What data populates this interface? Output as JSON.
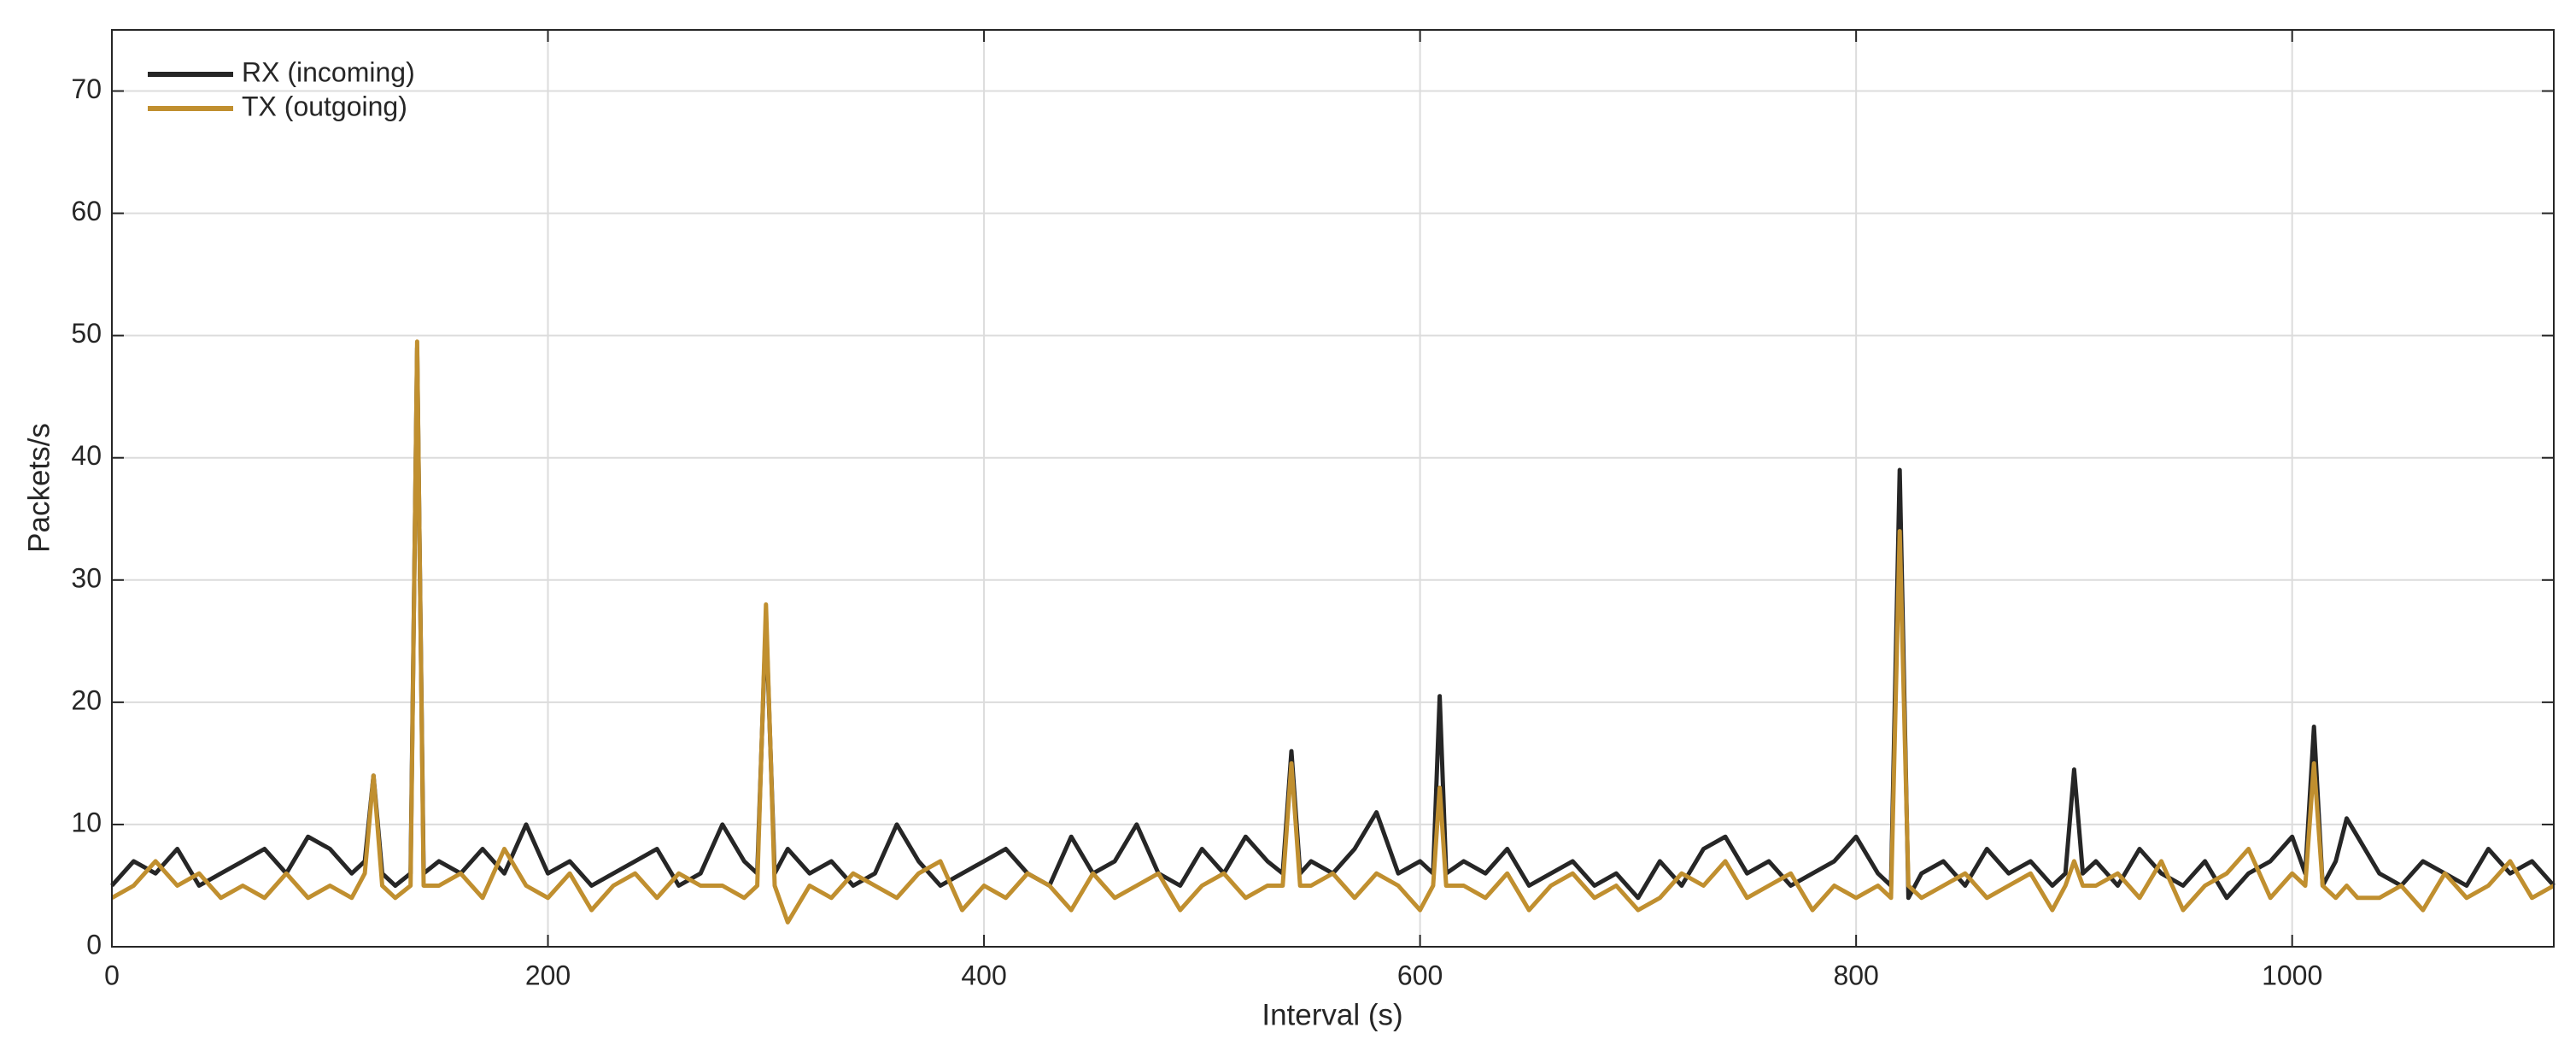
{
  "chart_data": {
    "type": "line",
    "x_label": "Interval (s)",
    "y_label": "Packets/s",
    "x": [
      0,
      10,
      20,
      30,
      40,
      50,
      60,
      70,
      80,
      90,
      100,
      110,
      116,
      120,
      124,
      130,
      137,
      140,
      143,
      150,
      160,
      170,
      180,
      190,
      200,
      210,
      220,
      230,
      240,
      250,
      260,
      270,
      280,
      290,
      296,
      300,
      304,
      310,
      320,
      330,
      340,
      350,
      360,
      370,
      380,
      390,
      400,
      410,
      420,
      430,
      440,
      450,
      460,
      470,
      480,
      490,
      500,
      510,
      520,
      530,
      537,
      541,
      545,
      550,
      560,
      570,
      580,
      590,
      600,
      606,
      609,
      612,
      620,
      630,
      640,
      650,
      660,
      670,
      680,
      690,
      700,
      710,
      720,
      730,
      740,
      750,
      760,
      770,
      780,
      790,
      800,
      810,
      816,
      820,
      824,
      830,
      840,
      850,
      860,
      870,
      880,
      890,
      896,
      900,
      904,
      910,
      920,
      930,
      940,
      950,
      960,
      970,
      980,
      990,
      1000,
      1006,
      1010,
      1014,
      1020,
      1025,
      1030,
      1040,
      1050,
      1060,
      1070,
      1080,
      1090,
      1100,
      1110,
      1120
    ],
    "series": [
      {
        "name": "RX (incoming)",
        "color": "#262626",
        "values": [
          5,
          7,
          6,
          8,
          5,
          6,
          7,
          8,
          6,
          9,
          8,
          6,
          7,
          14,
          6,
          5,
          6,
          49,
          6,
          7,
          6,
          8,
          6,
          10,
          6,
          7,
          5,
          6,
          7,
          8,
          5,
          6,
          10,
          7,
          6,
          27,
          6,
          8,
          6,
          7,
          5,
          6,
          10,
          7,
          5,
          6,
          7,
          8,
          6,
          5,
          9,
          6,
          7,
          10,
          6,
          5,
          8,
          6,
          9,
          7,
          6,
          16,
          6,
          7,
          6,
          8,
          11,
          6,
          7,
          6,
          20.5,
          6,
          7,
          6,
          8,
          5,
          6,
          7,
          5,
          6,
          4,
          7,
          5,
          8,
          9,
          6,
          7,
          5,
          6,
          7,
          9,
          6,
          5,
          39,
          4,
          6,
          7,
          5,
          8,
          6,
          7,
          5,
          6,
          14.5,
          6,
          7,
          5,
          8,
          6,
          5,
          7,
          4,
          6,
          7,
          9,
          6,
          18,
          5,
          7,
          10.5,
          9,
          6,
          5,
          7,
          6,
          5,
          8,
          6,
          7,
          5
        ]
      },
      {
        "name": "TX (outgoing)",
        "color": "#c08f2f",
        "values": [
          4,
          5,
          7,
          5,
          6,
          4,
          5,
          4,
          6,
          4,
          5,
          4,
          6,
          14,
          5,
          4,
          5,
          49.5,
          5,
          5,
          6,
          4,
          8,
          5,
          4,
          6,
          3,
          5,
          6,
          4,
          6,
          5,
          5,
          4,
          5,
          28,
          5,
          2,
          5,
          4,
          6,
          5,
          4,
          6,
          7,
          3,
          5,
          4,
          6,
          5,
          3,
          6,
          4,
          5,
          6,
          3,
          5,
          6,
          4,
          5,
          5,
          15,
          5,
          5,
          6,
          4,
          6,
          5,
          3,
          5,
          13,
          5,
          5,
          4,
          6,
          3,
          5,
          6,
          4,
          5,
          3,
          4,
          6,
          5,
          7,
          4,
          5,
          6,
          3,
          5,
          4,
          5,
          4,
          34,
          5,
          4,
          5,
          6,
          4,
          5,
          6,
          3,
          5,
          7,
          5,
          5,
          6,
          4,
          7,
          3,
          5,
          6,
          8,
          4,
          6,
          5,
          15,
          5,
          4,
          5,
          4,
          4,
          5,
          3,
          6,
          4,
          5,
          7,
          4,
          5
        ]
      }
    ],
    "xlim": [
      0,
      1120
    ],
    "ylim": [
      0,
      75
    ],
    "xticks": [
      0,
      200,
      400,
      600,
      800,
      1000
    ],
    "yticks": [
      0,
      10,
      20,
      30,
      40,
      50,
      60,
      70
    ],
    "grid": true,
    "legend": "upper left"
  }
}
